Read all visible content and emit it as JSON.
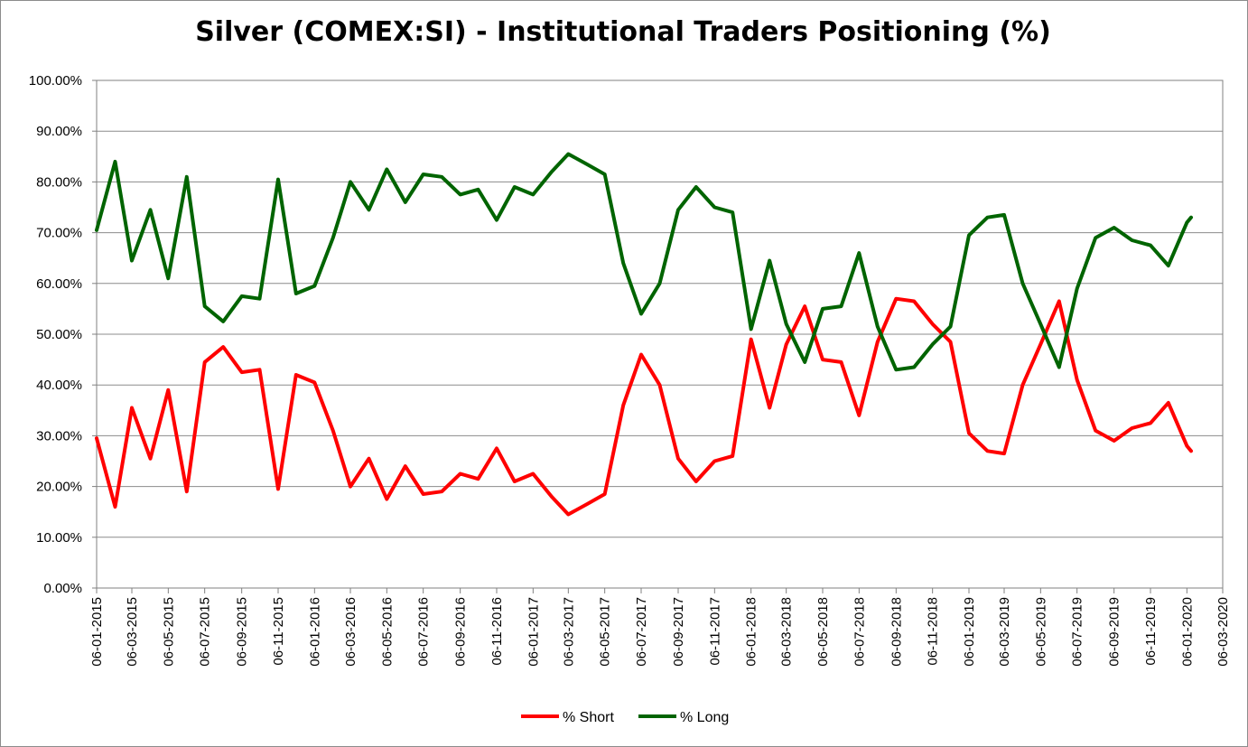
{
  "chart_data": {
    "type": "line",
    "title": "Silver (COMEX:SI) - Institutional Traders Positioning (%)",
    "xlabel": "",
    "ylabel": "",
    "ylim": [
      0,
      100
    ],
    "y_ticks": [
      "0.00%",
      "10.00%",
      "20.00%",
      "30.00%",
      "40.00%",
      "50.00%",
      "60.00%",
      "70.00%",
      "80.00%",
      "90.00%",
      "100.00%"
    ],
    "x_ticks": [
      "06-01-2015",
      "06-03-2015",
      "06-05-2015",
      "06-07-2015",
      "06-09-2015",
      "06-11-2015",
      "06-01-2016",
      "06-03-2016",
      "06-05-2016",
      "06-07-2016",
      "06-09-2016",
      "06-11-2016",
      "06-01-2017",
      "06-03-2017",
      "06-05-2017",
      "06-07-2017",
      "06-09-2017",
      "06-11-2017",
      "06-01-2018",
      "06-03-2018",
      "06-05-2018",
      "06-07-2018",
      "06-09-2018",
      "06-11-2018",
      "06-01-2019",
      "06-03-2019",
      "06-05-2019",
      "06-07-2019",
      "06-09-2019",
      "06-11-2019",
      "06-01-2020",
      "06-03-2020"
    ],
    "grid": true,
    "legend_position": "bottom",
    "x": [
      "06-01-2015",
      "06-02-2015",
      "06-03-2015",
      "06-04-2015",
      "06-05-2015",
      "06-06-2015",
      "06-07-2015",
      "06-08-2015",
      "06-09-2015",
      "06-10-2015",
      "06-11-2015",
      "06-12-2015",
      "06-01-2016",
      "06-02-2016",
      "06-03-2016",
      "06-04-2016",
      "06-05-2016",
      "06-06-2016",
      "06-07-2016",
      "06-08-2016",
      "06-09-2016",
      "06-10-2016",
      "06-11-2016",
      "06-12-2016",
      "06-01-2017",
      "06-02-2017",
      "06-03-2017",
      "06-04-2017",
      "06-05-2017",
      "06-06-2017",
      "06-07-2017",
      "06-08-2017",
      "06-09-2017",
      "06-10-2017",
      "06-11-2017",
      "06-12-2017",
      "06-01-2018",
      "06-02-2018",
      "06-03-2018",
      "06-04-2018",
      "06-05-2018",
      "06-06-2018",
      "06-07-2018",
      "06-08-2018",
      "06-09-2018",
      "06-10-2018",
      "06-11-2018",
      "06-12-2018",
      "06-01-2019",
      "06-02-2019",
      "06-03-2019",
      "06-04-2019",
      "06-05-2019",
      "06-06-2019",
      "06-07-2019",
      "06-08-2019",
      "06-09-2019",
      "06-10-2019",
      "06-11-2019",
      "06-12-2019",
      "06-01-2020",
      "13-01-2020"
    ],
    "series": [
      {
        "name": "% Short",
        "color": "#ff0000",
        "values": [
          29.5,
          16.0,
          35.5,
          25.5,
          39.0,
          19.0,
          44.5,
          47.5,
          42.5,
          43.0,
          19.5,
          42.0,
          40.5,
          31.0,
          20.0,
          25.5,
          17.5,
          24.0,
          18.5,
          19.0,
          22.5,
          21.5,
          27.5,
          21.0,
          22.5,
          18.0,
          14.5,
          16.5,
          18.5,
          36.0,
          46.0,
          40.0,
          25.5,
          21.0,
          25.0,
          26.0,
          49.0,
          35.5,
          48.0,
          55.5,
          45.0,
          44.5,
          34.0,
          48.5,
          57.0,
          56.5,
          52.0,
          48.5,
          30.5,
          27.0,
          26.5,
          40.0,
          48.0,
          56.5,
          41.0,
          31.0,
          29.0,
          31.5,
          32.5,
          36.5,
          28.0,
          27.0
        ]
      },
      {
        "name": "% Long",
        "color": "#006400",
        "values": [
          70.5,
          84.0,
          64.5,
          74.5,
          61.0,
          81.0,
          55.5,
          52.5,
          57.5,
          57.0,
          80.5,
          58.0,
          59.5,
          69.0,
          80.0,
          74.5,
          82.5,
          76.0,
          81.5,
          81.0,
          77.5,
          78.5,
          72.5,
          79.0,
          77.5,
          82.0,
          85.5,
          83.5,
          81.5,
          64.0,
          54.0,
          60.0,
          74.5,
          79.0,
          75.0,
          74.0,
          51.0,
          64.5,
          52.0,
          44.5,
          55.0,
          55.5,
          66.0,
          51.5,
          43.0,
          43.5,
          48.0,
          51.5,
          69.5,
          73.0,
          73.5,
          60.0,
          52.0,
          43.5,
          59.0,
          69.0,
          71.0,
          68.5,
          67.5,
          63.5,
          72.0,
          73.0
        ]
      }
    ]
  }
}
